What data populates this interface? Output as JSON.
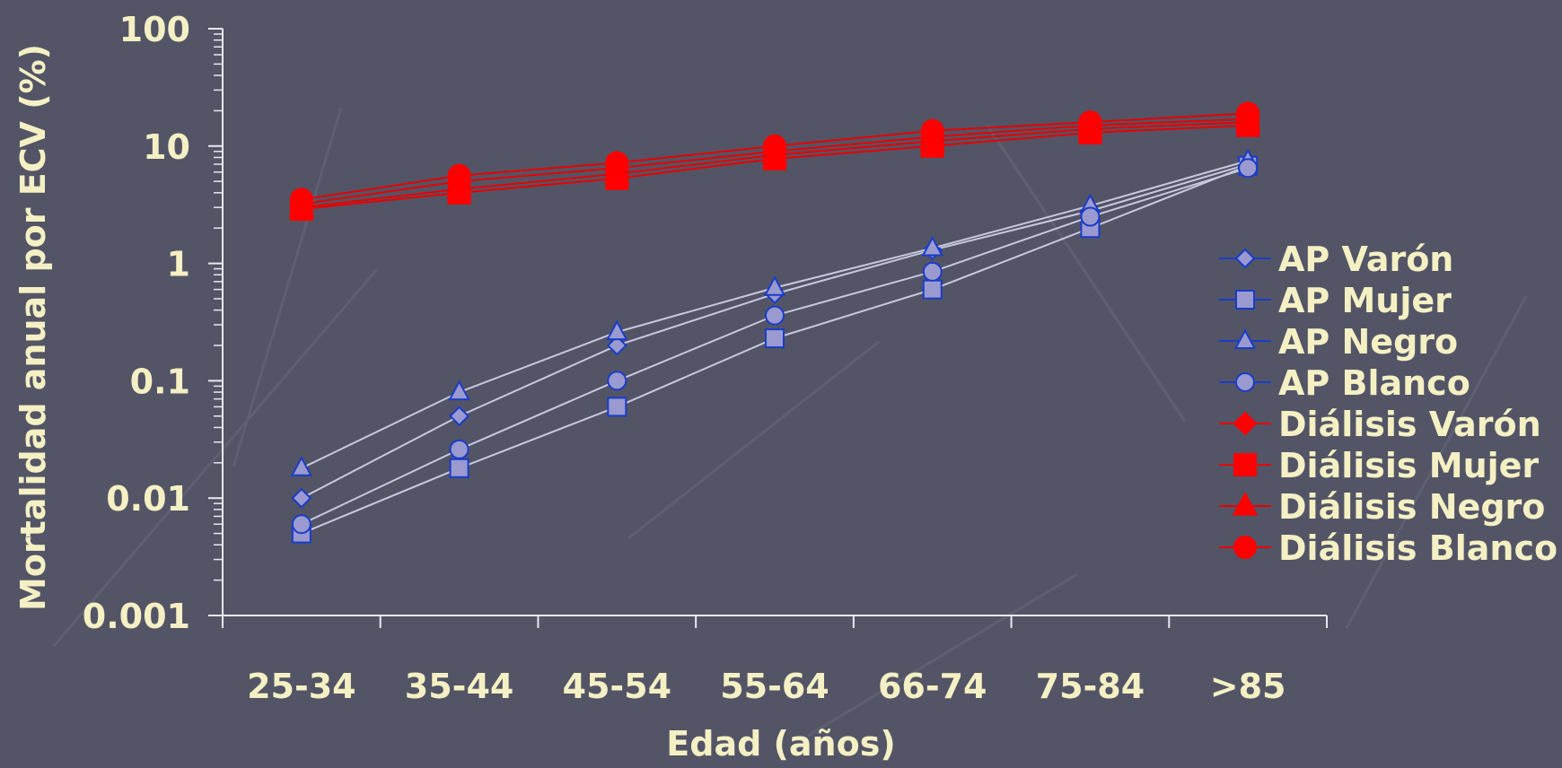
{
  "chart_data": {
    "type": "line",
    "title": "",
    "xlabel": "Edad (años)",
    "ylabel": "Mortalidad anual por ECV (%)",
    "y_scale": "log",
    "ylim": [
      0.001,
      100
    ],
    "y_ticks": [
      0.001,
      0.01,
      0.1,
      1,
      10,
      100
    ],
    "y_tick_labels": [
      "0.001",
      "0.01",
      "0.1",
      "1",
      "10",
      "100"
    ],
    "categories": [
      "25-34",
      "35-44",
      "45-54",
      "55-64",
      "66-74",
      "75-84",
      ">85"
    ],
    "grid": false,
    "legend_position": "right",
    "series": [
      {
        "name": "AP Varón",
        "marker": "diamond",
        "line_color": "#c8c8e0",
        "fill": "#9a9ad0",
        "stroke": "#1a3cc8",
        "values": [
          0.01,
          0.05,
          0.2,
          0.55,
          1.3,
          2.8,
          7.0
        ]
      },
      {
        "name": "AP Mujer",
        "marker": "square",
        "line_color": "#c8c8e0",
        "fill": "#9a9ad0",
        "stroke": "#1a3cc8",
        "values": [
          0.005,
          0.018,
          0.06,
          0.23,
          0.6,
          2.0,
          6.8
        ]
      },
      {
        "name": "AP Negro",
        "marker": "triangle",
        "line_color": "#c8c8e0",
        "fill": "#9a9ad0",
        "stroke": "#1a3cc8",
        "values": [
          0.018,
          0.08,
          0.26,
          0.62,
          1.35,
          3.1,
          7.5
        ]
      },
      {
        "name": "AP Blanco",
        "marker": "circle",
        "line_color": "#c8c8e0",
        "fill": "#9a9ad0",
        "stroke": "#1a3cc8",
        "values": [
          0.006,
          0.026,
          0.1,
          0.36,
          0.85,
          2.5,
          6.5
        ]
      },
      {
        "name": "Diálisis Varón",
        "marker": "diamond",
        "line_color": "#e80000",
        "fill": "#ff0000",
        "stroke": "#ff0000",
        "values": [
          3.2,
          5.0,
          6.5,
          9.0,
          12.0,
          15.0,
          17.0
        ]
      },
      {
        "name": "Diálisis Mujer",
        "marker": "square",
        "line_color": "#e80000",
        "fill": "#ff0000",
        "stroke": "#ff0000",
        "values": [
          2.9,
          4.0,
          5.3,
          7.8,
          10.0,
          13.0,
          15.0
        ]
      },
      {
        "name": "Diálisis Negro",
        "marker": "triangle",
        "line_color": "#e80000",
        "fill": "#ff0000",
        "stroke": "#ff0000",
        "values": [
          3.0,
          4.3,
          5.8,
          8.4,
          11.0,
          14.0,
          16.0
        ]
      },
      {
        "name": "Diálisis Blanco",
        "marker": "circle",
        "line_color": "#e80000",
        "fill": "#ff0000",
        "stroke": "#ff0000",
        "values": [
          3.5,
          5.6,
          7.2,
          10.0,
          13.5,
          16.0,
          19.0
        ]
      }
    ]
  }
}
